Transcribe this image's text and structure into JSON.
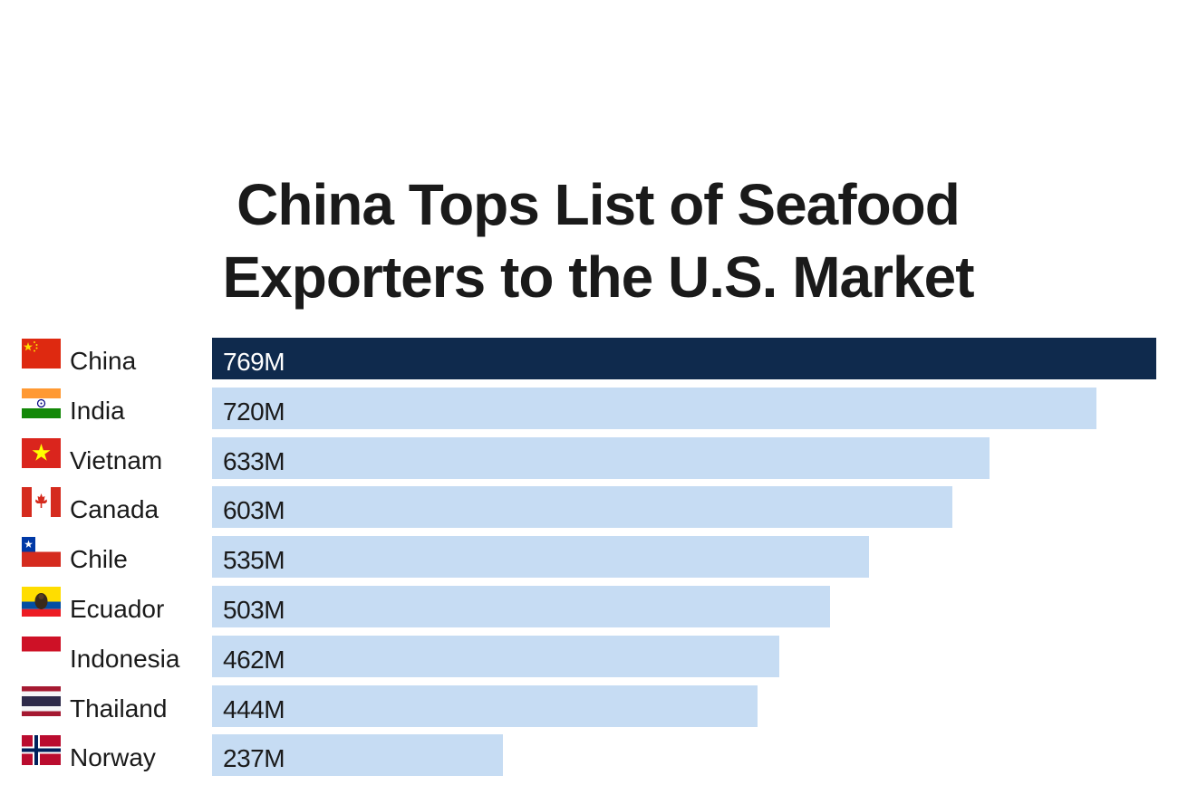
{
  "title": {
    "line1": "China Tops List of Seafood",
    "line2": "Exporters to the U.S. Market"
  },
  "chart_data": {
    "type": "bar",
    "orientation": "horizontal",
    "categories": [
      "China",
      "India",
      "Vietnam",
      "Canada",
      "Chile",
      "Ecuador",
      "Indonesia",
      "Thailand",
      "Norway"
    ],
    "values": [
      769,
      720,
      633,
      603,
      535,
      503,
      462,
      444,
      237
    ],
    "value_labels": [
      "769M",
      "720M",
      "633M",
      "603M",
      "535M",
      "503M",
      "462M",
      "444M",
      "237M"
    ],
    "highlight_category": "China",
    "colors": {
      "highlight_bar": "#0f2a4d",
      "bar": "#c6dcf3",
      "highlight_text": "#ffffff",
      "bar_text": "#1a1a1a"
    },
    "flag_icons": [
      "china-flag-icon",
      "india-flag-icon",
      "vietnam-flag-icon",
      "canada-flag-icon",
      "chile-flag-icon",
      "ecuador-flag-icon",
      "indonesia-flag-icon",
      "thailand-flag-icon",
      "norway-flag-icon"
    ]
  }
}
